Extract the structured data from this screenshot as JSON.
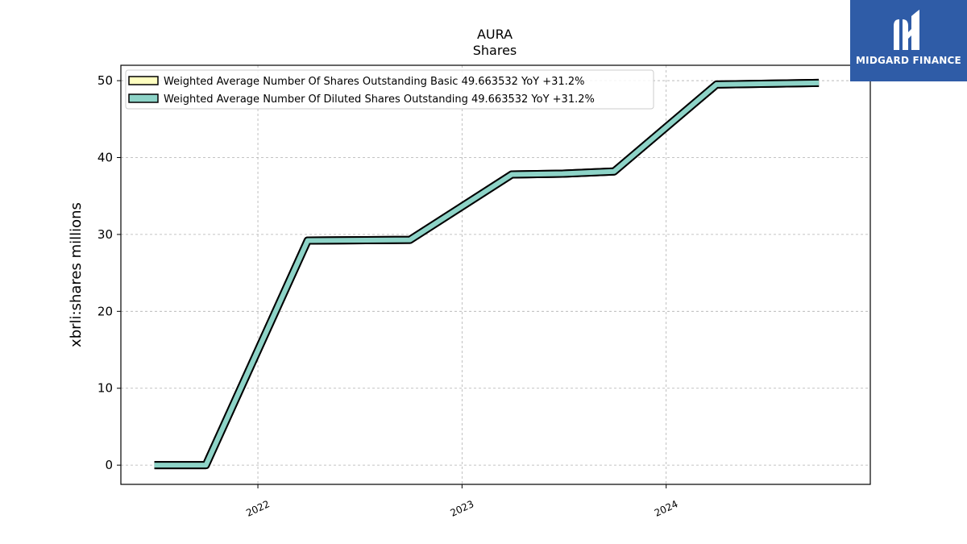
{
  "brand": {
    "logo_text": "MIDGARD FINANCE",
    "color": "#2f5ca7"
  },
  "chart_data": {
    "type": "line",
    "title": "AURA",
    "subtitle": "Shares",
    "ylabel": "xbrli:shares millions",
    "xlabel": "",
    "x_ticks": [
      "2022",
      "2023",
      "2024"
    ],
    "y_ticks": [
      0,
      10,
      20,
      30,
      40,
      50
    ],
    "ylim": [
      -2.5,
      52
    ],
    "xlim": [
      "2021-05-01",
      "2024-12-31"
    ],
    "grid": true,
    "legend_position": "top-left",
    "series": [
      {
        "name": "Weighted Average Number Of Shares Outstanding Basic  49.663532 YoY +31.2%",
        "color": "#ffffc0",
        "x": [
          "2021-06-30",
          "2021-09-30",
          "2022-03-31",
          "2022-09-30",
          "2023-03-31",
          "2023-06-30",
          "2023-09-30",
          "2024-03-31",
          "2024-09-30"
        ],
        "values": [
          0.0,
          0.0,
          29.2,
          29.3,
          37.8,
          37.9,
          38.2,
          49.5,
          49.7
        ]
      },
      {
        "name": "Weighted Average Number Of Diluted Shares Outstanding  49.663532 YoY +31.2%",
        "color": "#8dd3c7",
        "x": [
          "2021-06-30",
          "2021-09-30",
          "2022-03-31",
          "2022-09-30",
          "2023-03-31",
          "2023-06-30",
          "2023-09-30",
          "2024-03-31",
          "2024-09-30"
        ],
        "values": [
          0.0,
          0.0,
          29.2,
          29.3,
          37.8,
          37.9,
          38.2,
          49.5,
          49.7
        ]
      }
    ]
  }
}
